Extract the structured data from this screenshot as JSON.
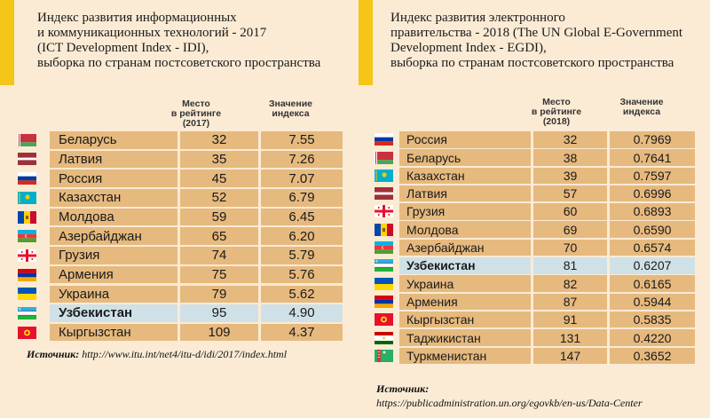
{
  "left": {
    "title_lines": [
      "Индекс развития информационных",
      "и коммуникационных технологий - 2017",
      "(ICT Development Index - IDI),",
      "выборка по странам постсоветского пространства"
    ],
    "col_rank_lines": [
      "Место",
      "в рейтинге",
      "(2017)"
    ],
    "col_value_lines": [
      "Значение",
      "индекса"
    ],
    "rows": [
      {
        "country": "Беларусь",
        "rank": "32",
        "value": "7.55",
        "flag": "by"
      },
      {
        "country": "Латвия",
        "rank": "35",
        "value": "7.26",
        "flag": "lv"
      },
      {
        "country": "Россия",
        "rank": "45",
        "value": "7.07",
        "flag": "ru"
      },
      {
        "country": "Казахстан",
        "rank": "52",
        "value": "6.79",
        "flag": "kz"
      },
      {
        "country": "Молдова",
        "rank": "59",
        "value": "6.45",
        "flag": "md"
      },
      {
        "country": "Азербайджан",
        "rank": "65",
        "value": "6.20",
        "flag": "az"
      },
      {
        "country": "Грузия",
        "rank": "74",
        "value": "5.79",
        "flag": "ge"
      },
      {
        "country": "Армения",
        "rank": "75",
        "value": "5.76",
        "flag": "am"
      },
      {
        "country": "Украина",
        "rank": "79",
        "value": "5.62",
        "flag": "ua"
      },
      {
        "country": "Узбекистан",
        "rank": "95",
        "value": "4.90",
        "flag": "uz",
        "highlight": true
      },
      {
        "country": "Кыргызстан",
        "rank": "109",
        "value": "4.37",
        "flag": "kg"
      }
    ],
    "source_label": "Источник:",
    "source_url": "http://www.itu.int/net4/itu-d/idi/2017/index.html"
  },
  "right": {
    "title_lines": [
      "Индекс развития электронного",
      "правительства - 2018 (The UN Global E-Government",
      "Development Index - EGDI),",
      "выборка по странам постсоветского пространства"
    ],
    "col_rank_lines": [
      "Место",
      "в рейтинге",
      "(2018)"
    ],
    "col_value_lines": [
      "Значение",
      "индекса"
    ],
    "rows": [
      {
        "country": "Россия",
        "rank": "32",
        "value": "0.7969",
        "flag": "ru"
      },
      {
        "country": "Беларусь",
        "rank": "38",
        "value": "0.7641",
        "flag": "by"
      },
      {
        "country": "Казахстан",
        "rank": "39",
        "value": "0.7597",
        "flag": "kz"
      },
      {
        "country": "Латвия",
        "rank": "57",
        "value": "0.6996",
        "flag": "lv"
      },
      {
        "country": "Грузия",
        "rank": "60",
        "value": "0.6893",
        "flag": "ge"
      },
      {
        "country": "Молдова",
        "rank": "69",
        "value": "0.6590",
        "flag": "md"
      },
      {
        "country": "Азербайджан",
        "rank": "70",
        "value": "0.6574",
        "flag": "az"
      },
      {
        "country": "Узбекистан",
        "rank": "81",
        "value": "0.6207",
        "flag": "uz",
        "highlight": true
      },
      {
        "country": "Украина",
        "rank": "82",
        "value": "0.6165",
        "flag": "ua"
      },
      {
        "country": "Армения",
        "rank": "87",
        "value": "0.5944",
        "flag": "am"
      },
      {
        "country": "Кыргызстан",
        "rank": "91",
        "value": "0.5835",
        "flag": "kg"
      },
      {
        "country": "Таджикистан",
        "rank": "131",
        "value": "0.4220",
        "flag": "tj"
      },
      {
        "country": "Туркменистан",
        "rank": "147",
        "value": "0.3652",
        "flag": "tm"
      }
    ],
    "source_label": "Источник:",
    "source_url": "https://publicadministration.un.org/egovkb/en-us/Data-Center"
  }
}
